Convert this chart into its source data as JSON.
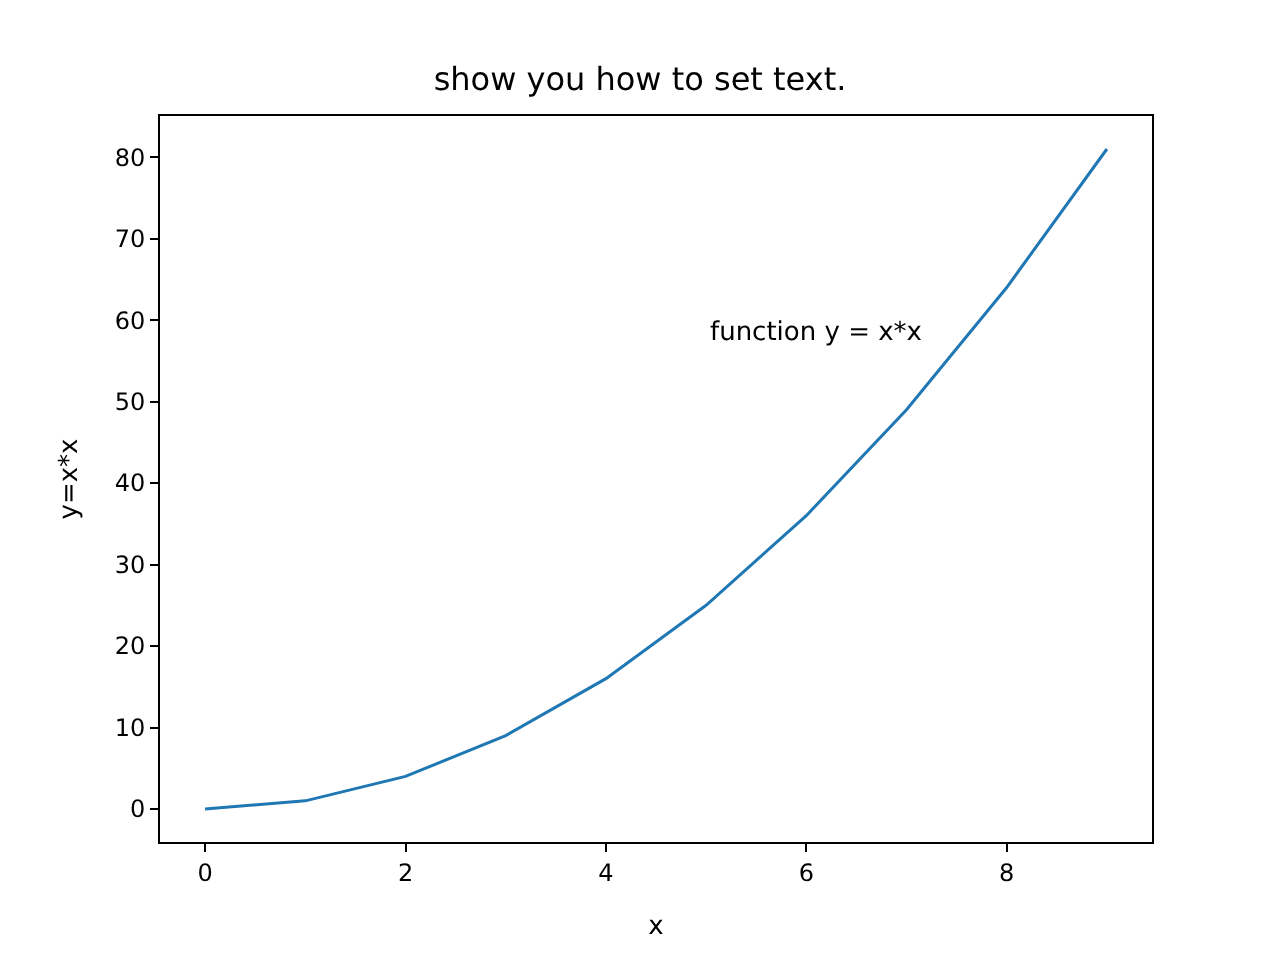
{
  "chart_data": {
    "type": "line",
    "title": "show you how to set text.",
    "xlabel": "x",
    "ylabel": "y=x*x",
    "x": [
      0,
      1,
      2,
      3,
      4,
      5,
      6,
      7,
      8,
      9
    ],
    "series": [
      {
        "color": "#1f77b4",
        "values": [
          0,
          1,
          4,
          9,
          16,
          25,
          36,
          49,
          64,
          81
        ]
      }
    ],
    "xlim": [
      -0.45,
      9.45
    ],
    "xticks": [
      0,
      2,
      4,
      6,
      8
    ],
    "ylim": [
      -4.05,
      85.05
    ],
    "yticks": [
      0,
      10,
      20,
      30,
      40,
      50,
      60,
      70,
      80
    ],
    "annotations": [
      "function y = x*x"
    ],
    "marker": "none",
    "line_style": "solid"
  }
}
